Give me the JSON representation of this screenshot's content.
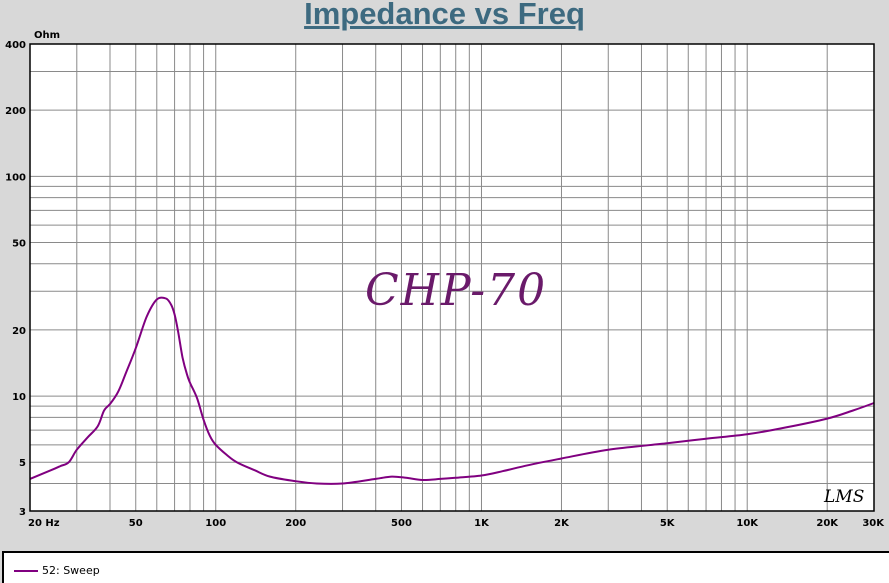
{
  "chart_data": {
    "type": "line",
    "title": "Impedance vs Freq",
    "ylabel": "Ohm",
    "xlabel": "",
    "xscale": "log",
    "yscale": "log",
    "xlim": [
      20,
      30000
    ],
    "ylim": [
      3,
      400
    ],
    "grid": true,
    "xticks": [
      {
        "v": 20,
        "t": "20 Hz"
      },
      {
        "v": 50,
        "t": "50"
      },
      {
        "v": 100,
        "t": "100"
      },
      {
        "v": 200,
        "t": "200"
      },
      {
        "v": 500,
        "t": "500"
      },
      {
        "v": 1000,
        "t": "1K"
      },
      {
        "v": 2000,
        "t": "2K"
      },
      {
        "v": 5000,
        "t": "5K"
      },
      {
        "v": 10000,
        "t": "10K"
      },
      {
        "v": 20000,
        "t": "20K"
      },
      {
        "v": 30000,
        "t": "30K"
      }
    ],
    "yticks": [
      {
        "v": 3,
        "t": "3"
      },
      {
        "v": 5,
        "t": "5"
      },
      {
        "v": 10,
        "t": "10"
      },
      {
        "v": 20,
        "t": "20"
      },
      {
        "v": 50,
        "t": "50"
      },
      {
        "v": 100,
        "t": "100"
      },
      {
        "v": 200,
        "t": "200"
      },
      {
        "v": 400,
        "t": "400"
      }
    ],
    "series": [
      {
        "name": "52: Sweep",
        "color": "#800080",
        "x": [
          20,
          24,
          26,
          28,
          30,
          33,
          36,
          38,
          40,
          43,
          46,
          50,
          55,
          60,
          65,
          68,
          70,
          72,
          75,
          78,
          80,
          85,
          90,
          95,
          100,
          110,
          120,
          140,
          160,
          200,
          240,
          300,
          400,
          460,
          520,
          600,
          700,
          800,
          1000,
          1200,
          1500,
          2000,
          3000,
          5000,
          7000,
          10000,
          14000,
          20000,
          25000,
          30000
        ],
        "y": [
          4.2,
          4.6,
          4.8,
          5.0,
          5.7,
          6.5,
          7.3,
          8.6,
          9.2,
          10.5,
          12.8,
          16.5,
          23.0,
          27.5,
          27.8,
          26.0,
          23.5,
          20.0,
          15.0,
          12.5,
          11.5,
          9.8,
          7.8,
          6.6,
          6.0,
          5.4,
          5.0,
          4.6,
          4.3,
          4.1,
          4.0,
          4.0,
          4.2,
          4.3,
          4.25,
          4.15,
          4.2,
          4.25,
          4.35,
          4.55,
          4.85,
          5.2,
          5.7,
          6.1,
          6.4,
          6.7,
          7.2,
          7.9,
          8.6,
          9.3
        ]
      }
    ],
    "annotations": [
      "CHP-70",
      "LMS"
    ],
    "legend": {
      "position": "bottom-left",
      "label": "52: Sweep"
    }
  }
}
